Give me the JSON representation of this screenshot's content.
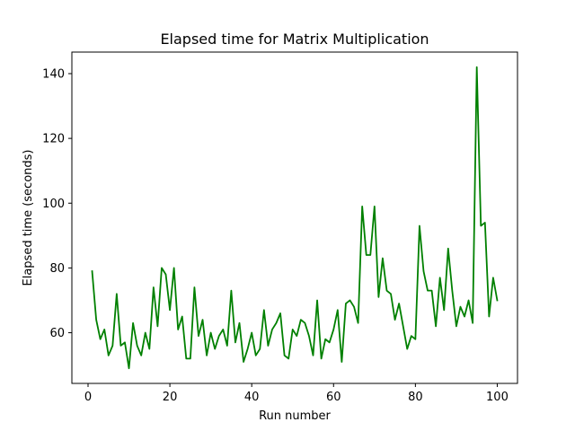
{
  "chart_data": {
    "type": "line",
    "title": "Elapsed time for Matrix Multiplication",
    "xlabel": "Run number",
    "ylabel": "Elapsed time (seconds)",
    "xlim": [
      -3.95,
      104.95
    ],
    "ylim": [
      44.35,
      146.65
    ],
    "xticks": [
      0,
      20,
      40,
      60,
      80,
      100
    ],
    "yticks": [
      60,
      80,
      100,
      120,
      140
    ],
    "grid": false,
    "series": [
      {
        "color": "#008000",
        "x": [
          1,
          2,
          3,
          4,
          5,
          6,
          7,
          8,
          9,
          10,
          11,
          12,
          13,
          14,
          15,
          16,
          17,
          18,
          19,
          20,
          21,
          22,
          23,
          24,
          25,
          26,
          27,
          28,
          29,
          30,
          31,
          32,
          33,
          34,
          35,
          36,
          37,
          38,
          39,
          40,
          41,
          42,
          43,
          44,
          45,
          46,
          47,
          48,
          49,
          50,
          51,
          52,
          53,
          54,
          55,
          56,
          57,
          58,
          59,
          60,
          61,
          62,
          63,
          64,
          65,
          66,
          67,
          68,
          69,
          70,
          71,
          72,
          73,
          74,
          75,
          76,
          77,
          78,
          79,
          80,
          81,
          82,
          83,
          84,
          85,
          86,
          87,
          88,
          89,
          90,
          91,
          92,
          93,
          94,
          95,
          96,
          97,
          98,
          99,
          100
        ],
        "values": [
          79,
          64,
          58,
          61,
          53,
          56,
          72,
          56,
          57,
          49,
          63,
          56,
          53,
          60,
          55,
          74,
          62,
          80,
          78,
          67,
          80,
          61,
          65,
          52,
          52,
          74,
          59,
          64,
          53,
          60,
          55,
          59,
          61,
          56,
          73,
          57,
          63,
          51,
          55,
          60,
          53,
          55,
          67,
          56,
          61,
          63,
          66,
          53,
          52,
          61,
          59,
          64,
          63,
          59,
          53,
          70,
          52,
          58,
          57,
          61,
          67,
          51,
          69,
          70,
          68,
          63,
          99,
          84,
          84,
          99,
          71,
          83,
          73,
          72,
          64,
          69,
          62,
          55,
          59,
          58,
          93,
          79,
          73,
          73,
          62,
          77,
          67,
          86,
          73,
          62,
          68,
          65,
          70,
          63,
          142,
          93,
          94,
          65,
          77,
          70
        ]
      }
    ]
  }
}
